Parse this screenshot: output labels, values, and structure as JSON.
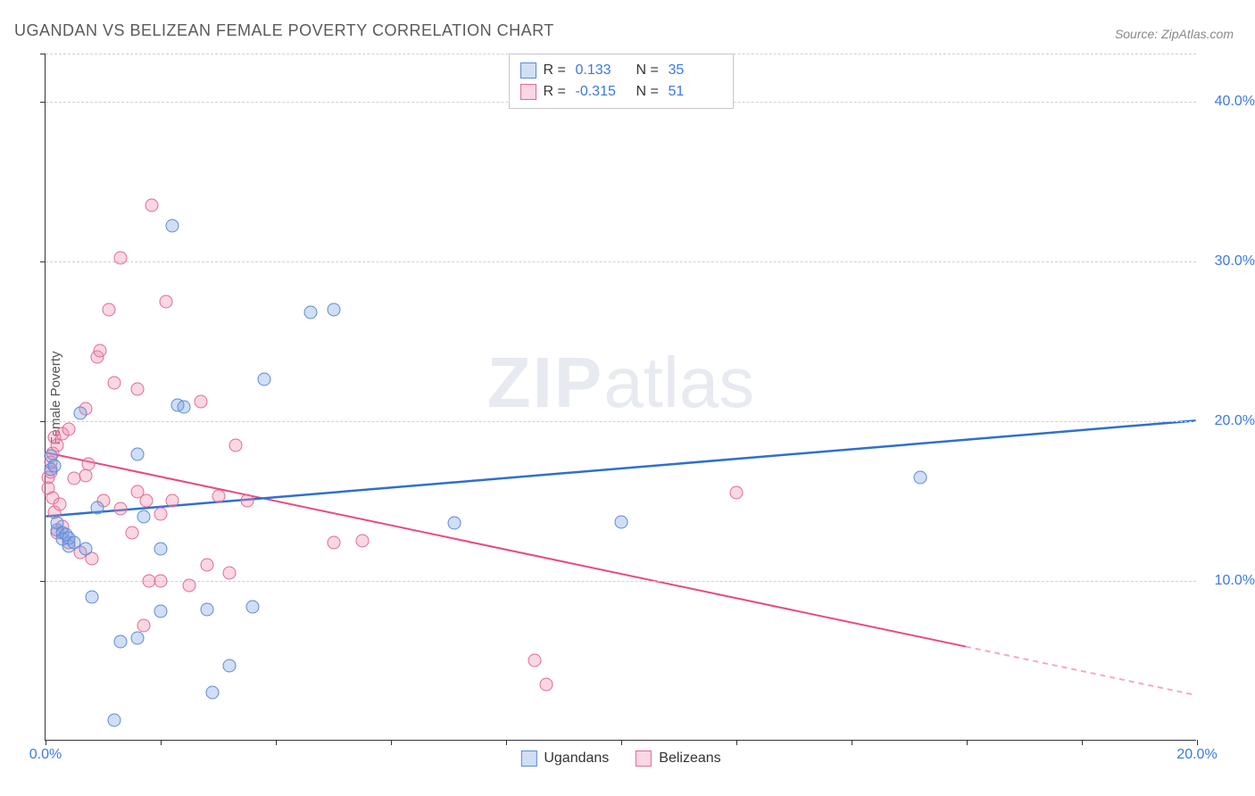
{
  "title": "UGANDAN VS BELIZEAN FEMALE POVERTY CORRELATION CHART",
  "source": "Source: ZipAtlas.com",
  "ylabel": "Female Poverty",
  "watermark_zip": "ZIP",
  "watermark_atlas": "atlas",
  "style": {
    "background": "#ffffff",
    "title_color": "#5a5a5a",
    "title_fontsize": 18,
    "source_color": "#888888",
    "axis_color": "#333333",
    "grid_color": "#d0d0d0",
    "tick_label_color": "#3b78e7",
    "tick_label_fontsize": 16,
    "ylabel_color": "#555555",
    "marker_radius": 7.5,
    "marker_border_width": 1.5
  },
  "axes": {
    "xlim": [
      0,
      20
    ],
    "ylim": [
      0,
      43
    ],
    "x_ticks": [
      0,
      2,
      4,
      6,
      8,
      10,
      12,
      14,
      16,
      18,
      20
    ],
    "x_tick_labels": {
      "0": "0.0%",
      "20": "20.0%"
    },
    "y_grid": [
      10,
      20,
      30,
      40,
      43
    ],
    "y_tick_labels": {
      "10": "10.0%",
      "20": "20.0%",
      "30": "30.0%",
      "40": "40.0%"
    }
  },
  "series": {
    "ugandans": {
      "label": "Ugandans",
      "fill": "rgba(120,160,230,0.35)",
      "stroke": "#5b8ad6",
      "r_label": "R =",
      "r_value": "0.133",
      "n_label": "N =",
      "n_value": "35",
      "trend": {
        "y_at_x0": 14.0,
        "y_at_xmax": 20.0,
        "extrapolate_from_x": null,
        "color": "#2f6fd1",
        "width": 2.5,
        "dash_color": "#2f6fd1"
      },
      "points": [
        [
          0.1,
          17.0
        ],
        [
          0.1,
          17.8
        ],
        [
          0.15,
          17.2
        ],
        [
          0.2,
          13.2
        ],
        [
          0.2,
          13.6
        ],
        [
          0.3,
          12.6
        ],
        [
          0.3,
          13.0
        ],
        [
          0.35,
          12.9
        ],
        [
          0.4,
          12.2
        ],
        [
          0.4,
          12.7
        ],
        [
          0.5,
          12.4
        ],
        [
          0.6,
          20.5
        ],
        [
          0.7,
          12.0
        ],
        [
          0.8,
          9.0
        ],
        [
          0.9,
          14.6
        ],
        [
          1.2,
          1.3
        ],
        [
          1.3,
          6.2
        ],
        [
          1.6,
          17.9
        ],
        [
          1.6,
          6.4
        ],
        [
          1.7,
          14.0
        ],
        [
          2.0,
          8.1
        ],
        [
          2.0,
          12.0
        ],
        [
          2.2,
          32.2
        ],
        [
          2.3,
          21.0
        ],
        [
          2.4,
          20.9
        ],
        [
          2.8,
          8.2
        ],
        [
          2.9,
          3.0
        ],
        [
          3.2,
          4.7
        ],
        [
          3.6,
          8.4
        ],
        [
          3.8,
          22.6
        ],
        [
          4.6,
          26.8
        ],
        [
          5.0,
          27.0
        ],
        [
          7.1,
          13.6
        ],
        [
          10.0,
          13.7
        ],
        [
          15.2,
          16.5
        ]
      ]
    },
    "belizeans": {
      "label": "Belizeans",
      "fill": "rgba(240,140,170,0.35)",
      "stroke": "#e06a94",
      "r_label": "R =",
      "r_value": "-0.315",
      "n_label": "N =",
      "n_value": "51",
      "trend": {
        "y_at_x0": 18.0,
        "y_at_xmax": 2.8,
        "extrapolate_from_x": 16.0,
        "color": "#e84a7f",
        "width": 2,
        "dash_color": "#f5a8c0"
      },
      "points": [
        [
          0.05,
          16.5
        ],
        [
          0.05,
          15.8
        ],
        [
          0.1,
          16.8
        ],
        [
          0.1,
          17.4
        ],
        [
          0.12,
          15.2
        ],
        [
          0.12,
          18.0
        ],
        [
          0.15,
          14.3
        ],
        [
          0.15,
          19.0
        ],
        [
          0.2,
          18.5
        ],
        [
          0.2,
          13.0
        ],
        [
          0.25,
          14.8
        ],
        [
          0.3,
          13.4
        ],
        [
          0.3,
          19.2
        ],
        [
          0.4,
          12.4
        ],
        [
          0.4,
          19.5
        ],
        [
          0.5,
          16.4
        ],
        [
          0.6,
          11.8
        ],
        [
          0.7,
          16.6
        ],
        [
          0.7,
          20.8
        ],
        [
          0.75,
          17.3
        ],
        [
          0.8,
          11.4
        ],
        [
          0.9,
          24.0
        ],
        [
          0.95,
          24.4
        ],
        [
          1.0,
          15.0
        ],
        [
          1.1,
          27.0
        ],
        [
          1.2,
          22.4
        ],
        [
          1.3,
          14.5
        ],
        [
          1.3,
          30.2
        ],
        [
          1.5,
          13.0
        ],
        [
          1.6,
          15.6
        ],
        [
          1.6,
          22.0
        ],
        [
          1.7,
          7.2
        ],
        [
          1.75,
          15.0
        ],
        [
          1.8,
          10.0
        ],
        [
          1.85,
          33.5
        ],
        [
          2.0,
          10.0
        ],
        [
          2.0,
          14.2
        ],
        [
          2.1,
          27.5
        ],
        [
          2.2,
          15.0
        ],
        [
          2.5,
          9.7
        ],
        [
          2.7,
          21.2
        ],
        [
          2.8,
          11.0
        ],
        [
          3.0,
          15.3
        ],
        [
          3.3,
          18.5
        ],
        [
          3.5,
          15.0
        ],
        [
          5.0,
          12.4
        ],
        [
          5.5,
          12.5
        ],
        [
          8.5,
          5.0
        ],
        [
          8.7,
          3.5
        ],
        [
          12.0,
          15.5
        ],
        [
          3.2,
          10.5
        ]
      ]
    }
  },
  "bottom_legend": [
    {
      "key": "ugandans"
    },
    {
      "key": "belizeans"
    }
  ]
}
